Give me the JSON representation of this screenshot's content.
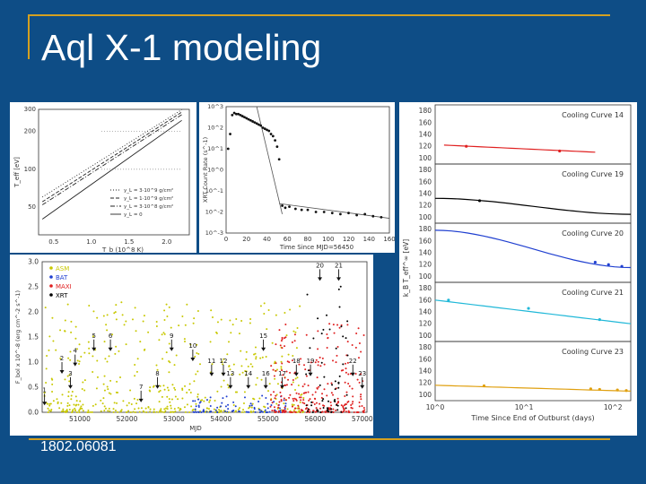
{
  "slide": {
    "title": "Aql X-1 modeling",
    "reference": "1802.06081",
    "accent_color": "#d4a020",
    "background_color": "#0e4d86"
  },
  "chart_data": [
    {
      "id": "teff-vs-tb",
      "type": "line",
      "xlabel": "T_b (10^8 K)",
      "ylabel": "T_eff [eV]",
      "xlim": [
        0.3,
        2.3
      ],
      "ylim": [
        30,
        300
      ],
      "x_ticks": [
        "0.5",
        "1.0",
        "1.5",
        "2.0"
      ],
      "y_ticks": [
        "300",
        "200",
        "100",
        "50"
      ],
      "series": [
        {
          "name": "y_L = 3·10^9 g/cm²",
          "style": "dotted",
          "x": [
            0.35,
            2.2
          ],
          "y": [
            60,
            298
          ]
        },
        {
          "name": "y_L = 1·10^9 g/cm²",
          "style": "dashed",
          "x": [
            0.35,
            2.2
          ],
          "y": [
            55,
            285
          ]
        },
        {
          "name": "y_L = 3·10^8 g/cm²",
          "style": "dashdot",
          "x": [
            0.35,
            2.2
          ],
          "y": [
            52,
            272
          ]
        },
        {
          "name": "y_L = 0",
          "style": "solid",
          "x": [
            0.35,
            2.2
          ],
          "y": [
            40,
            245
          ]
        }
      ],
      "legend": [
        "y_L = 3·10^9 g/cm²",
        "y_L = 1·10^9 g/cm²",
        "y_L = 3·10^8 g/cm²",
        "y_L = 0"
      ]
    },
    {
      "id": "xrt-count-rate",
      "type": "scatter",
      "xlabel": "Time Since MJD=56450",
      "ylabel": "XRT Count Rate (s^-1)",
      "xlim": [
        0,
        160
      ],
      "ylim_log10": [
        -3,
        3
      ],
      "x_ticks": [
        "0",
        "20",
        "40",
        "60",
        "80",
        "100",
        "120",
        "140",
        "160"
      ],
      "y_ticks": [
        "10^3",
        "10^2",
        "10^1",
        "10^0",
        "10^-1",
        "10^-2",
        "10^-3"
      ],
      "points": {
        "x": [
          2,
          4,
          6,
          8,
          10,
          12,
          14,
          16,
          18,
          20,
          22,
          24,
          26,
          28,
          30,
          32,
          34,
          36,
          38,
          40,
          42,
          44,
          46,
          48,
          50,
          52,
          55,
          58,
          62,
          68,
          74,
          80,
          88,
          96,
          104,
          112,
          120,
          128,
          136,
          144,
          152
        ],
        "y_log10": [
          1.0,
          1.7,
          2.6,
          2.7,
          2.65,
          2.65,
          2.6,
          2.55,
          2.5,
          2.45,
          2.4,
          2.35,
          2.3,
          2.25,
          2.2,
          2.15,
          2.1,
          2.0,
          1.95,
          1.9,
          1.85,
          1.7,
          1.6,
          1.4,
          1.1,
          0.5,
          -1.7,
          -1.8,
          -1.75,
          -1.85,
          -1.9,
          -1.9,
          -2.0,
          -2.0,
          -2.05,
          -2.1,
          -2.05,
          -2.15,
          -2.1,
          -2.2,
          -2.25
        ]
      }
    },
    {
      "id": "outburst-lightcurve",
      "type": "scatter",
      "xlabel": "MJD",
      "ylabel": "F_bol x 10^-8 (erg cm^-2 s^-1)",
      "xlim": [
        50200,
        57100
      ],
      "ylim": [
        0,
        3.0
      ],
      "x_ticks": [
        "51000",
        "52000",
        "53000",
        "54000",
        "55000",
        "56000",
        "57000"
      ],
      "y_ticks": [
        "3.0",
        "2.5",
        "2.0",
        "1.5",
        "1.0",
        "0.5",
        "0.0"
      ],
      "legend": [
        {
          "label": "ASM",
          "color": "#c8c800"
        },
        {
          "label": "BAT",
          "color": "#1f3fd0"
        },
        {
          "label": "MAXI",
          "color": "#e02020"
        },
        {
          "label": "XRT",
          "color": "#000000"
        }
      ],
      "outbursts": [
        {
          "label": "1",
          "x": 50250,
          "y": 0.12
        },
        {
          "label": "2",
          "x": 50620,
          "y": 0.75
        },
        {
          "label": "3",
          "x": 50800,
          "y": 0.45
        },
        {
          "label": "4",
          "x": 50900,
          "y": 0.9
        },
        {
          "label": "5",
          "x": 51300,
          "y": 1.2
        },
        {
          "label": "6",
          "x": 51650,
          "y": 1.2
        },
        {
          "label": "7",
          "x": 52300,
          "y": 0.18
        },
        {
          "label": "8",
          "x": 52650,
          "y": 0.45
        },
        {
          "label": "9",
          "x": 52950,
          "y": 1.2
        },
        {
          "label": "10",
          "x": 53400,
          "y": 1.0
        },
        {
          "label": "11",
          "x": 53800,
          "y": 0.7
        },
        {
          "label": "12",
          "x": 54050,
          "y": 0.7
        },
        {
          "label": "13",
          "x": 54200,
          "y": 0.45
        },
        {
          "label": "14",
          "x": 54580,
          "y": 0.45
        },
        {
          "label": "15",
          "x": 54900,
          "y": 1.2
        },
        {
          "label": "16",
          "x": 54950,
          "y": 0.45
        },
        {
          "label": "17",
          "x": 55300,
          "y": 0.45
        },
        {
          "label": "18",
          "x": 55600,
          "y": 0.7
        },
        {
          "label": "19",
          "x": 55900,
          "y": 0.7
        },
        {
          "label": "20",
          "x": 56100,
          "y": 2.6
        },
        {
          "label": "21",
          "x": 56500,
          "y": 2.6
        },
        {
          "label": "22",
          "x": 56800,
          "y": 0.7
        },
        {
          "label": "23",
          "x": 57000,
          "y": 0.45
        }
      ]
    },
    {
      "id": "cooling-curves",
      "type": "line",
      "xlabel": "Time Since End of Outburst (days)",
      "ylabel": "k_B T_eff^∞ [eV]",
      "x_log10_range": [
        0,
        2.2
      ],
      "x_ticks": [
        "10^0",
        "10^1",
        "10^2"
      ],
      "panels": [
        {
          "label": "Cooling Curve 14",
          "color": "#e02020",
          "y_ticks": [
            "180",
            "160",
            "140",
            "120",
            "100"
          ],
          "ylim": [
            90,
            190
          ],
          "x_log10": [
            0.1,
            1.8
          ],
          "y": [
            122,
            110
          ],
          "points": {
            "x_log10": [
              0.35,
              1.4
            ],
            "y": [
              120,
              112
            ]
          }
        },
        {
          "label": "Cooling Curve 19",
          "color": "#000000",
          "y_ticks": [
            "180",
            "160",
            "140",
            "120",
            "100"
          ],
          "ylim": [
            90,
            190
          ],
          "x_log10": [
            0,
            2.2
          ],
          "y": [
            132,
            105
          ],
          "points": {
            "x_log10": [
              0.5
            ],
            "y": [
              128
            ]
          }
        },
        {
          "label": "Cooling Curve 20",
          "color": "#1f3fd0",
          "y_ticks": [
            "180",
            "160",
            "140",
            "120",
            "100"
          ],
          "ylim": [
            90,
            190
          ],
          "x_log10": [
            0,
            2.2
          ],
          "y": [
            178,
            115
          ],
          "points": {
            "x_log10": [
              1.8,
              1.95,
              2.1
            ],
            "y": [
              124,
              120,
              117
            ]
          }
        },
        {
          "label": "Cooling Curve 21",
          "color": "#20b8d8",
          "y_ticks": [
            "180",
            "160",
            "140",
            "120",
            "100"
          ],
          "ylim": [
            90,
            190
          ],
          "x_log10": [
            0,
            2.2
          ],
          "y": [
            160,
            120
          ],
          "points": {
            "x_log10": [
              0.15,
              1.05,
              1.85
            ],
            "y": [
              160,
              146,
              127
            ]
          }
        },
        {
          "label": "Cooling Curve 23",
          "color": "#e0a010",
          "y_ticks": [
            "180",
            "160",
            "140",
            "120",
            "100"
          ],
          "ylim": [
            90,
            190
          ],
          "x_log10": [
            0,
            2.2
          ],
          "y": [
            116,
            106
          ],
          "points": {
            "x_log10": [
              0.55,
              1.75,
              1.85,
              2.05,
              2.15
            ],
            "y": [
              115,
              110,
              109,
              108,
              107
            ]
          }
        }
      ]
    }
  ]
}
